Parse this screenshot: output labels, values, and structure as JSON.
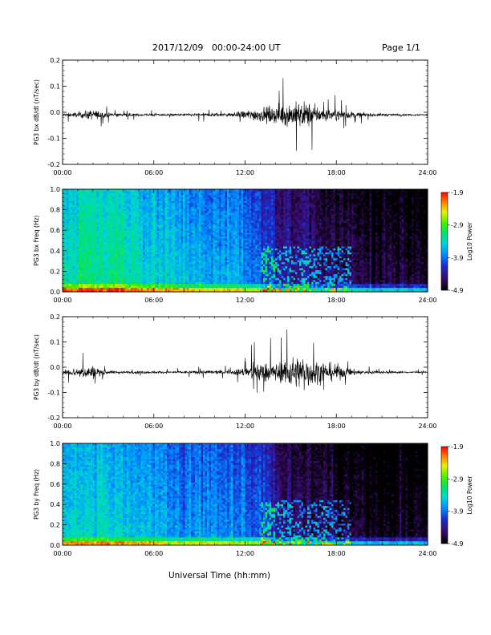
{
  "header": {
    "title": "2017/12/09   00:00-24:00 UT",
    "page": "Page 1/1"
  },
  "xaxis_title": "Universal Time (hh:mm)",
  "chart_data": [
    {
      "type": "line",
      "ylabel": "PG3 bx dB/dt (nT/sec)",
      "xlim": [
        0,
        24
      ],
      "ylim": [
        -0.2,
        0.2
      ],
      "xticks": [
        "00:00",
        "06:00",
        "12:00",
        "18:00",
        "24:00"
      ],
      "yticks": [
        "0.2",
        "0.1",
        "0.0",
        "-0.1",
        "-0.2"
      ],
      "baseline": -0.01,
      "envelope": [
        [
          0,
          0.01
        ],
        [
          1,
          0.015
        ],
        [
          2,
          0.03
        ],
        [
          3,
          0.012
        ],
        [
          4,
          0.01
        ],
        [
          5,
          0.008
        ],
        [
          6,
          0.007
        ],
        [
          7,
          0.006
        ],
        [
          8,
          0.008
        ],
        [
          9,
          0.01
        ],
        [
          10,
          0.012
        ],
        [
          11,
          0.01
        ],
        [
          12,
          0.025
        ],
        [
          13,
          0.04
        ],
        [
          14,
          0.05
        ],
        [
          15,
          0.07
        ],
        [
          16,
          0.075
        ],
        [
          17,
          0.04
        ],
        [
          18,
          0.03
        ],
        [
          19,
          0.02
        ],
        [
          20,
          0.01
        ],
        [
          21,
          0.008
        ],
        [
          22,
          0.006
        ],
        [
          23,
          0.005
        ],
        [
          24,
          0.005
        ]
      ],
      "color": "#000000"
    },
    {
      "type": "heatmap",
      "ylabel": "PG3 bx Freq (Hz)",
      "xlim": [
        0,
        24
      ],
      "ylim": [
        0.0,
        1.0
      ],
      "xticks": [
        "00:00",
        "06:00",
        "12:00",
        "18:00",
        "24:00"
      ],
      "yticks": [
        "1.0",
        "0.8",
        "0.6",
        "0.4",
        "0.2",
        "0.0"
      ],
      "colorbar": {
        "label": "Log10 Power",
        "ticks": [
          "-1.9",
          "-2.9",
          "-3.9",
          "-4.9"
        ],
        "range": [
          -4.9,
          -1.9
        ]
      },
      "levels_by_hour": [
        -3.3,
        -3.2,
        -3.2,
        -3.2,
        -3.3,
        -3.4,
        -3.4,
        -3.5,
        -3.6,
        -3.6,
        -3.7,
        -3.7,
        -3.8,
        -4.0,
        -4.3,
        -4.4,
        -4.4,
        -4.5,
        -4.6,
        -4.6,
        -4.7,
        -4.7,
        -4.7,
        -4.7
      ]
    },
    {
      "type": "line",
      "ylabel": "PG3 by dB/dt (nT/sec)",
      "xlim": [
        0,
        24
      ],
      "ylim": [
        -0.2,
        0.2
      ],
      "xticks": [
        "00:00",
        "06:00",
        "12:00",
        "18:00",
        "24:00"
      ],
      "yticks": [
        "0.2",
        "0.1",
        "0.0",
        "-0.1",
        "-0.2"
      ],
      "baseline": -0.02,
      "envelope": [
        [
          0,
          0.015
        ],
        [
          1,
          0.03
        ],
        [
          2,
          0.04
        ],
        [
          3,
          0.01
        ],
        [
          4,
          0.008
        ],
        [
          5,
          0.008
        ],
        [
          6,
          0.007
        ],
        [
          7,
          0.007
        ],
        [
          8,
          0.008
        ],
        [
          9,
          0.01
        ],
        [
          10,
          0.012
        ],
        [
          11,
          0.01
        ],
        [
          12,
          0.03
        ],
        [
          13,
          0.06
        ],
        [
          14,
          0.05
        ],
        [
          15,
          0.09
        ],
        [
          16,
          0.1
        ],
        [
          17,
          0.06
        ],
        [
          18,
          0.05
        ],
        [
          19,
          0.02
        ],
        [
          20,
          0.01
        ],
        [
          21,
          0.008
        ],
        [
          22,
          0.006
        ],
        [
          23,
          0.005
        ],
        [
          24,
          0.005
        ]
      ],
      "color": "#000000"
    },
    {
      "type": "heatmap",
      "ylabel": "PG3 by Freq (Hz)",
      "xlim": [
        0,
        24
      ],
      "ylim": [
        0.0,
        1.0
      ],
      "xticks": [
        "00:00",
        "06:00",
        "12:00",
        "18:00",
        "24:00"
      ],
      "yticks": [
        "1.0",
        "0.8",
        "0.6",
        "0.4",
        "0.2",
        "0.0"
      ],
      "colorbar": {
        "label": "Log10 Power",
        "ticks": [
          "-1.9",
          "-2.9",
          "-3.9",
          "-4.9"
        ],
        "range": [
          -4.9,
          -1.9
        ]
      },
      "levels_by_hour": [
        -3.5,
        -3.4,
        -3.4,
        -3.4,
        -3.5,
        -3.6,
        -3.6,
        -3.7,
        -3.7,
        -3.7,
        -3.8,
        -3.8,
        -3.9,
        -4.1,
        -4.4,
        -4.5,
        -4.5,
        -4.6,
        -4.7,
        -4.7,
        -4.8,
        -4.8,
        -4.8,
        -4.8
      ]
    }
  ]
}
